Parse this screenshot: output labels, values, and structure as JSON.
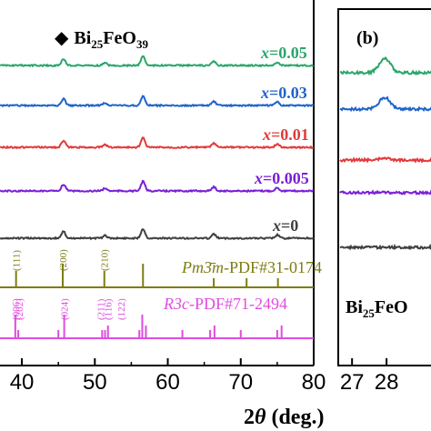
{
  "legend": {
    "symbol": "◆",
    "compound": "Bi",
    "sub1": "25",
    "mid": "FeO",
    "sub2": "39"
  },
  "panel_b": {
    "tag": "(b)",
    "compound": "Bi",
    "sub1": "25",
    "mid": "FeO"
  },
  "colors": {
    "x0": "#3f3f3f",
    "x0005": "#7a1fd6",
    "x001": "#e23a3a",
    "x003": "#1f63c9",
    "x005": "#2aa56a",
    "pm3m": "#7d7d12",
    "r3c": "#e04ce0",
    "axis": "#000000"
  },
  "chart_data": [
    {
      "type": "line",
      "xlabel": {
        "pre": "2",
        "theta": "θ",
        "post": " (deg.)"
      },
      "xlim": [
        37,
        80
      ],
      "x_ticks": [
        40,
        50,
        60,
        70,
        80
      ],
      "x_tick_labels": [
        "40",
        "50",
        "60",
        "70",
        "80"
      ],
      "y_ticks": false,
      "series": [
        {
          "key": "x005",
          "name": "x=0.05",
          "name_var": "x",
          "name_val": "=0.05",
          "baseline": 0.05,
          "peaks": [
            [
              45.7,
              0.9
            ],
            [
              51.4,
              0.35
            ],
            [
              56.6,
              1.3
            ],
            [
              66.3,
              0.55
            ],
            [
              75.0,
              0.45
            ]
          ]
        },
        {
          "key": "x003",
          "name": "x=0.03",
          "name_var": "x",
          "name_val": "=0.03",
          "baseline": 0.03,
          "peaks": [
            [
              45.7,
              0.9
            ],
            [
              51.4,
              0.35
            ],
            [
              56.6,
              1.3
            ],
            [
              66.3,
              0.55
            ],
            [
              75.0,
              0.45
            ]
          ]
        },
        {
          "key": "x001",
          "name": "x=0.01",
          "name_var": "x",
          "name_val": "=0.01",
          "baseline": 0.01,
          "peaks": [
            [
              45.7,
              0.9
            ],
            [
              51.4,
              0.35
            ],
            [
              56.6,
              1.3
            ],
            [
              66.3,
              0.55
            ],
            [
              75.0,
              0.45
            ]
          ]
        },
        {
          "key": "x0005",
          "name": "x=0.005",
          "name_var": "x",
          "name_val": "=0.005",
          "baseline": 0.005,
          "peaks": [
            [
              45.7,
              0.9
            ],
            [
              51.4,
              0.35
            ],
            [
              56.6,
              1.3
            ],
            [
              66.3,
              0.55
            ],
            [
              75.0,
              0.45
            ]
          ]
        },
        {
          "key": "x0",
          "name": "x=0",
          "name_var": "x",
          "name_val": "=0",
          "baseline": 0,
          "peaks": [
            [
              45.7,
              0.9
            ],
            [
              51.4,
              0.35
            ],
            [
              56.6,
              1.3
            ],
            [
              66.3,
              0.55
            ],
            [
              75.0,
              0.45
            ]
          ]
        }
      ],
      "references": [
        {
          "key": "pm3m",
          "label_sg": "Pm3̄m",
          "label_pdf": "-PDF#31-0174",
          "sticks": [
            39.2,
            45.6,
            51.3,
            56.6,
            66.3,
            70.8,
            75.1
          ],
          "hkl": [
            {
              "x": 39.2,
              "text": "(111)"
            },
            {
              "x": 45.6,
              "text": "(200)"
            },
            {
              "x": 51.3,
              "text": "(210)"
            }
          ]
        },
        {
          "key": "r3c",
          "label_sg": "R3c",
          "label_pdf": "-PDF#71-2494",
          "sticks": [
            39.1,
            39.5,
            45.0,
            45.8,
            51.0,
            51.4,
            51.8,
            56.1,
            56.5,
            57.0,
            62.0,
            65.8,
            66.4,
            70.0,
            75.0,
            75.6
          ],
          "hkl": [
            {
              "x": 39.1,
              "text": "(006)"
            },
            {
              "x": 39.6,
              "text": "(202)"
            },
            {
              "x": 45.8,
              "text": "(024)"
            },
            {
              "x": 50.8,
              "text": "(211)"
            },
            {
              "x": 51.8,
              "text": "(116)"
            },
            {
              "x": 53.6,
              "text": "(122)"
            }
          ]
        }
      ]
    },
    {
      "type": "line",
      "panel": "b",
      "xlim": [
        26.6,
        29.5
      ],
      "x_ticks": [
        27,
        28
      ],
      "x_tick_labels": [
        "27",
        "28"
      ],
      "series": [
        {
          "key": "x005",
          "peak": [
            27.95,
            1.0
          ]
        },
        {
          "key": "x003",
          "peak": [
            27.95,
            0.8
          ]
        },
        {
          "key": "x001",
          "peak": [
            27.95,
            0.1
          ]
        },
        {
          "key": "x0005",
          "peak": [
            27.95,
            0.05
          ]
        },
        {
          "key": "x0",
          "peak": [
            27.95,
            0.0
          ]
        }
      ]
    }
  ]
}
